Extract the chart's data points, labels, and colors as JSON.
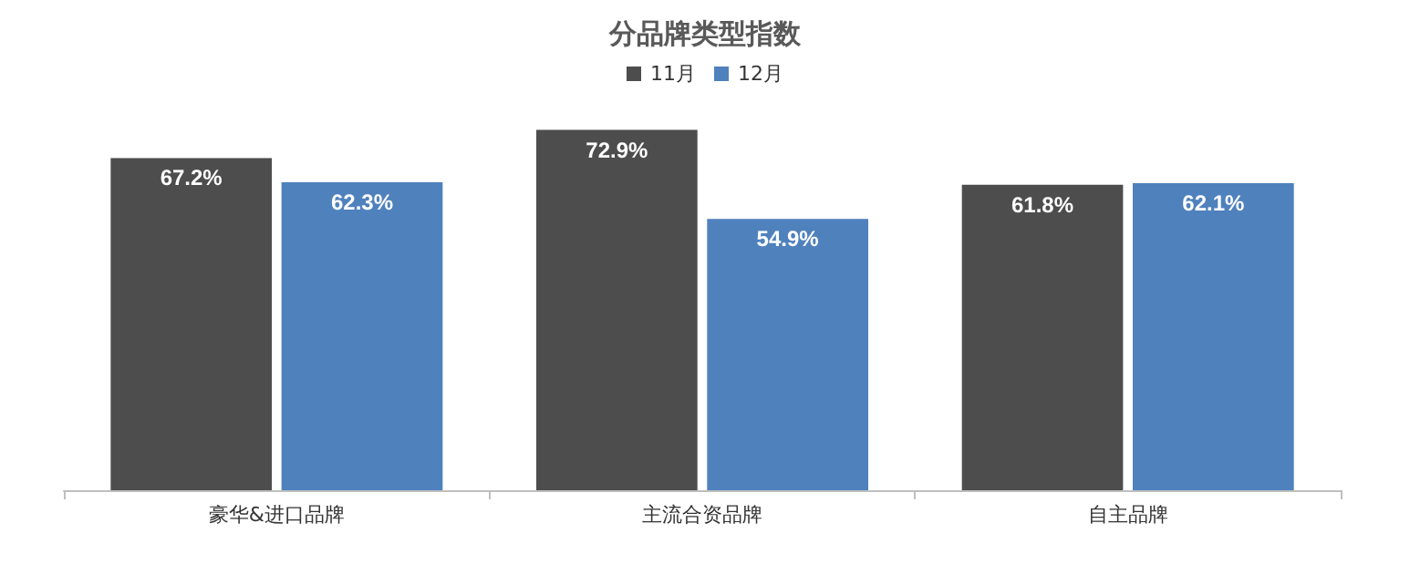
{
  "chart_data": {
    "type": "bar",
    "title": "分品牌类型指数",
    "categories": [
      "豪华&进口品牌",
      "主流合资品牌",
      "自主品牌"
    ],
    "series": [
      {
        "name": "11月",
        "color": "#4d4d4d",
        "values": [
          67.2,
          72.9,
          61.8
        ],
        "value_labels": [
          "67.2%",
          "72.9%",
          "61.8%"
        ]
      },
      {
        "name": "12月",
        "color": "#4f81bd",
        "values": [
          62.3,
          54.9,
          62.1
        ],
        "value_labels": [
          "62.3%",
          "54.9%",
          "62.1%"
        ]
      }
    ],
    "legend": "top"
  }
}
